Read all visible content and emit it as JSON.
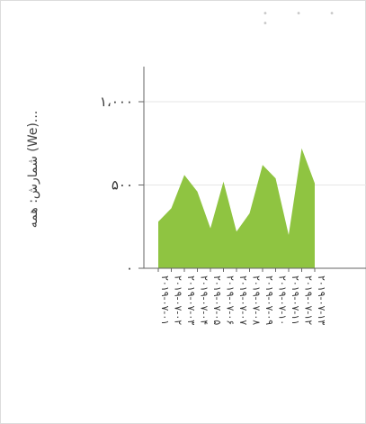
{
  "chart_data": {
    "type": "area",
    "title": "",
    "ylabel": "شمارش: همه (We)...",
    "xlabel": "",
    "ylim": [
      0,
      1000
    ],
    "yticks": [
      0,
      500,
      1000
    ],
    "ytick_labels": [
      "۰",
      "۵۰۰",
      "۱،۰۰۰"
    ],
    "grid": true,
    "series": [
      {
        "color": "#8fc441",
        "values": [
          280,
          360,
          560,
          460,
          240,
          520,
          220,
          330,
          620,
          540,
          200,
          720,
          510
        ]
      }
    ],
    "categories": [
      "۲۰۱۹-۰۷-۰۱",
      "۲۰۱۹-۰۷-۰۲",
      "۲۰۱۹-۰۷-۰۳",
      "۲۰۱۹-۰۷-۰۴",
      "۲۰۱۹-۰۷-۰۵",
      "۲۰۱۹-۰۷-۰۶",
      "۲۰۱۹-۰۷-۰۷",
      "۲۰۱۹-۰۷-۰۸",
      "۲۰۱۹-۰۷-۰۹",
      "۲۰۱۹-۰۷-۱۰",
      "۲۰۱۹-۰۷-۱۱",
      "۲۰۱۹-۰۷-۱۲",
      "۲۰۱۹-۰۷-۱۳"
    ]
  }
}
